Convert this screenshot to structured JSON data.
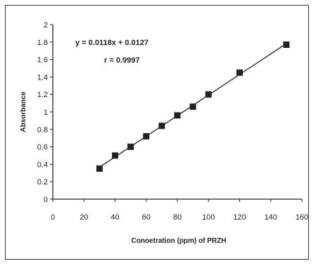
{
  "chart_data": {
    "type": "scatter",
    "title": "",
    "xlabel": "Conoetration (ppm) of PRZH",
    "ylabel": "Absorbance",
    "xlim": [
      0,
      160
    ],
    "ylim": [
      0,
      2
    ],
    "x_ticks": [
      "0",
      "20",
      "40",
      "60",
      "80",
      "100",
      "120",
      "140",
      "160"
    ],
    "y_ticks": [
      "0",
      "0.2",
      "0.4",
      "0.6",
      "0.8",
      "1",
      "1.2",
      "1.4",
      "1.6",
      "1.8",
      "2"
    ],
    "grid": false,
    "series": [
      {
        "x": [
          30,
          40,
          50,
          60,
          70,
          80,
          90,
          100,
          120,
          150
        ],
        "y": [
          0.35,
          0.5,
          0.6,
          0.72,
          0.84,
          0.96,
          1.06,
          1.2,
          1.45,
          1.77
        ]
      }
    ],
    "trendline": {
      "slope": 0.0118,
      "intercept": 0.0127,
      "x_range": [
        30,
        150
      ]
    },
    "annotations": {
      "equation": "y = 0.0118x + 0.0127",
      "r_value": "r = 0.9997"
    },
    "colors": {
      "marker": "#222222",
      "line": "#222222",
      "axis": "#222222"
    }
  }
}
